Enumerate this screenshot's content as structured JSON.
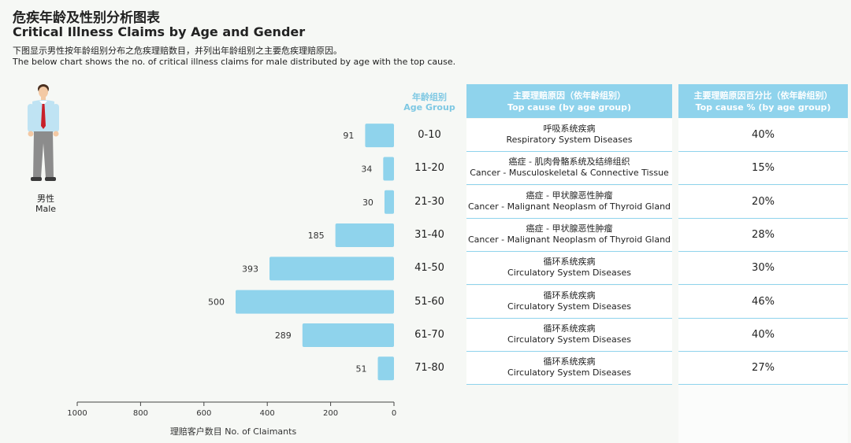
{
  "header": {
    "title_cn": "危疾年龄及性别分析图表",
    "title_en": "Critical Illness Claims by Age and Gender",
    "desc_cn": "下图显示男性按年龄组别分布之危疾理赔数目，并列出年龄组别之主要危疾理赔原因。",
    "desc_en": "The below chart shows the no. of critical illness claims for male distributed by age with the top cause."
  },
  "gender": {
    "cn": "男性",
    "en": "Male",
    "icon": "male-person-icon"
  },
  "table": {
    "age_header_cn": "年龄组别",
    "age_header_en": "Age Group",
    "cause_header_cn": "主要理赔原因（依年龄组别）",
    "cause_header_en": "Top cause (by age group)",
    "pct_header_cn": "主要理赔原因百分比（依年龄组别）",
    "pct_header_en": "Top cause % (by age group)",
    "rows": [
      {
        "age": "0-10",
        "cause_cn": "呼吸系统疾病",
        "cause_en": "Respiratory System Diseases",
        "pct": "40%"
      },
      {
        "age": "11-20",
        "cause_cn": "癌症 - 肌肉骨骼系统及结缔组织",
        "cause_en": "Cancer - Musculoskeletal & Connective Tissue",
        "pct": "15%"
      },
      {
        "age": "21-30",
        "cause_cn": "癌症 - 甲状腺恶性肿瘤",
        "cause_en": "Cancer - Malignant Neoplasm of Thyroid Gland",
        "pct": "20%"
      },
      {
        "age": "31-40",
        "cause_cn": "癌症 - 甲状腺恶性肿瘤",
        "cause_en": "Cancer - Malignant Neoplasm of Thyroid Gland",
        "pct": "28%"
      },
      {
        "age": "41-50",
        "cause_cn": "循环系统疾病",
        "cause_en": "Circulatory System Diseases",
        "pct": "30%"
      },
      {
        "age": "51-60",
        "cause_cn": "循环系统疾病",
        "cause_en": "Circulatory System Diseases",
        "pct": "46%"
      },
      {
        "age": "61-70",
        "cause_cn": "循环系统疾病",
        "cause_en": "Circulatory System Diseases",
        "pct": "40%"
      },
      {
        "age": "71-80",
        "cause_cn": "循环系统疾病",
        "cause_en": "Circulatory System Diseases",
        "pct": "27%"
      }
    ]
  },
  "chart_data": {
    "type": "bar",
    "orientation": "horizontal",
    "direction": "right-to-left",
    "categories": [
      "0-10",
      "11-20",
      "21-30",
      "31-40",
      "41-50",
      "51-60",
      "61-70",
      "71-80"
    ],
    "values": [
      91,
      34,
      30,
      185,
      393,
      500,
      289,
      51
    ],
    "xlabel": "理赔客户数目 No. of Claimants",
    "xlim": [
      0,
      1000
    ],
    "xticks": [
      1000,
      800,
      600,
      400,
      200,
      0
    ],
    "bar_color": "#8fd3ec",
    "grid": false
  },
  "colors": {
    "accent": "#8fd3ec",
    "header_text": "#7ec8e3"
  }
}
